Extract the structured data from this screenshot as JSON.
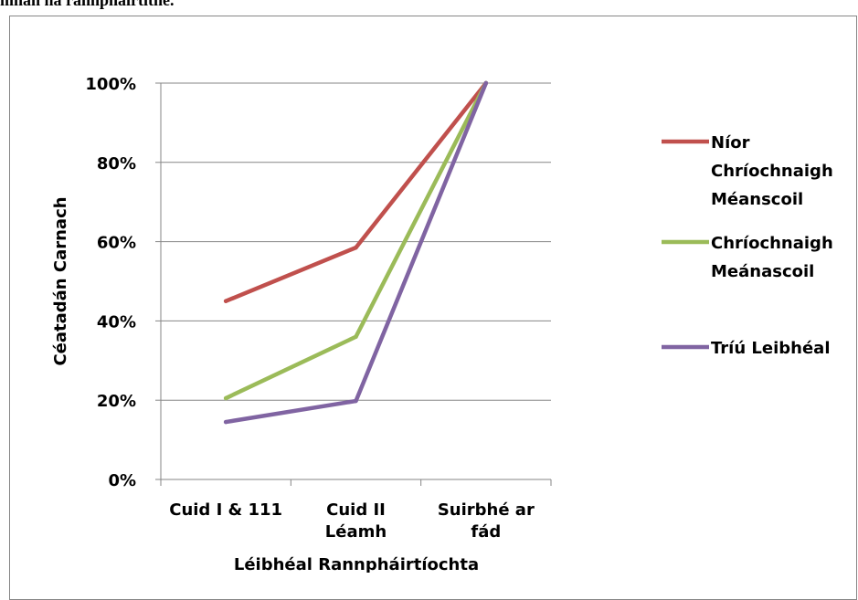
{
  "caption": "mhán na rannpháirtíthe.",
  "chart_data": {
    "type": "line",
    "categories": [
      [
        "Cuid I & 111"
      ],
      [
        "Cuid II",
        "Léamh"
      ],
      [
        "Suirbhé ar",
        "fád"
      ]
    ],
    "series": [
      {
        "name": [
          "Níor",
          "Chríochnaigh",
          "Méanscoil"
        ],
        "values": [
          0.45,
          0.585,
          1.0
        ],
        "color": "#c0504d"
      },
      {
        "name": [
          "Chríochnaigh",
          "Meánascoil"
        ],
        "values": [
          0.205,
          0.36,
          1.0
        ],
        "color": "#9bbb59"
      },
      {
        "name": [
          "Tríú Leibhéal"
        ],
        "values": [
          0.145,
          0.198,
          1.0
        ],
        "color": "#8064a2"
      }
    ],
    "ylim": [
      0,
      1
    ],
    "yticks": [
      0,
      0.2,
      0.4,
      0.6,
      0.8,
      1.0
    ],
    "ytick_labels": [
      "0%",
      "20%",
      "40%",
      "60%",
      "80%",
      "100%"
    ],
    "xlabel": "Léibhéal Rannpháirtíochta",
    "ylabel": "Céatadán Carnach",
    "grid": true,
    "legend_position": "right"
  }
}
